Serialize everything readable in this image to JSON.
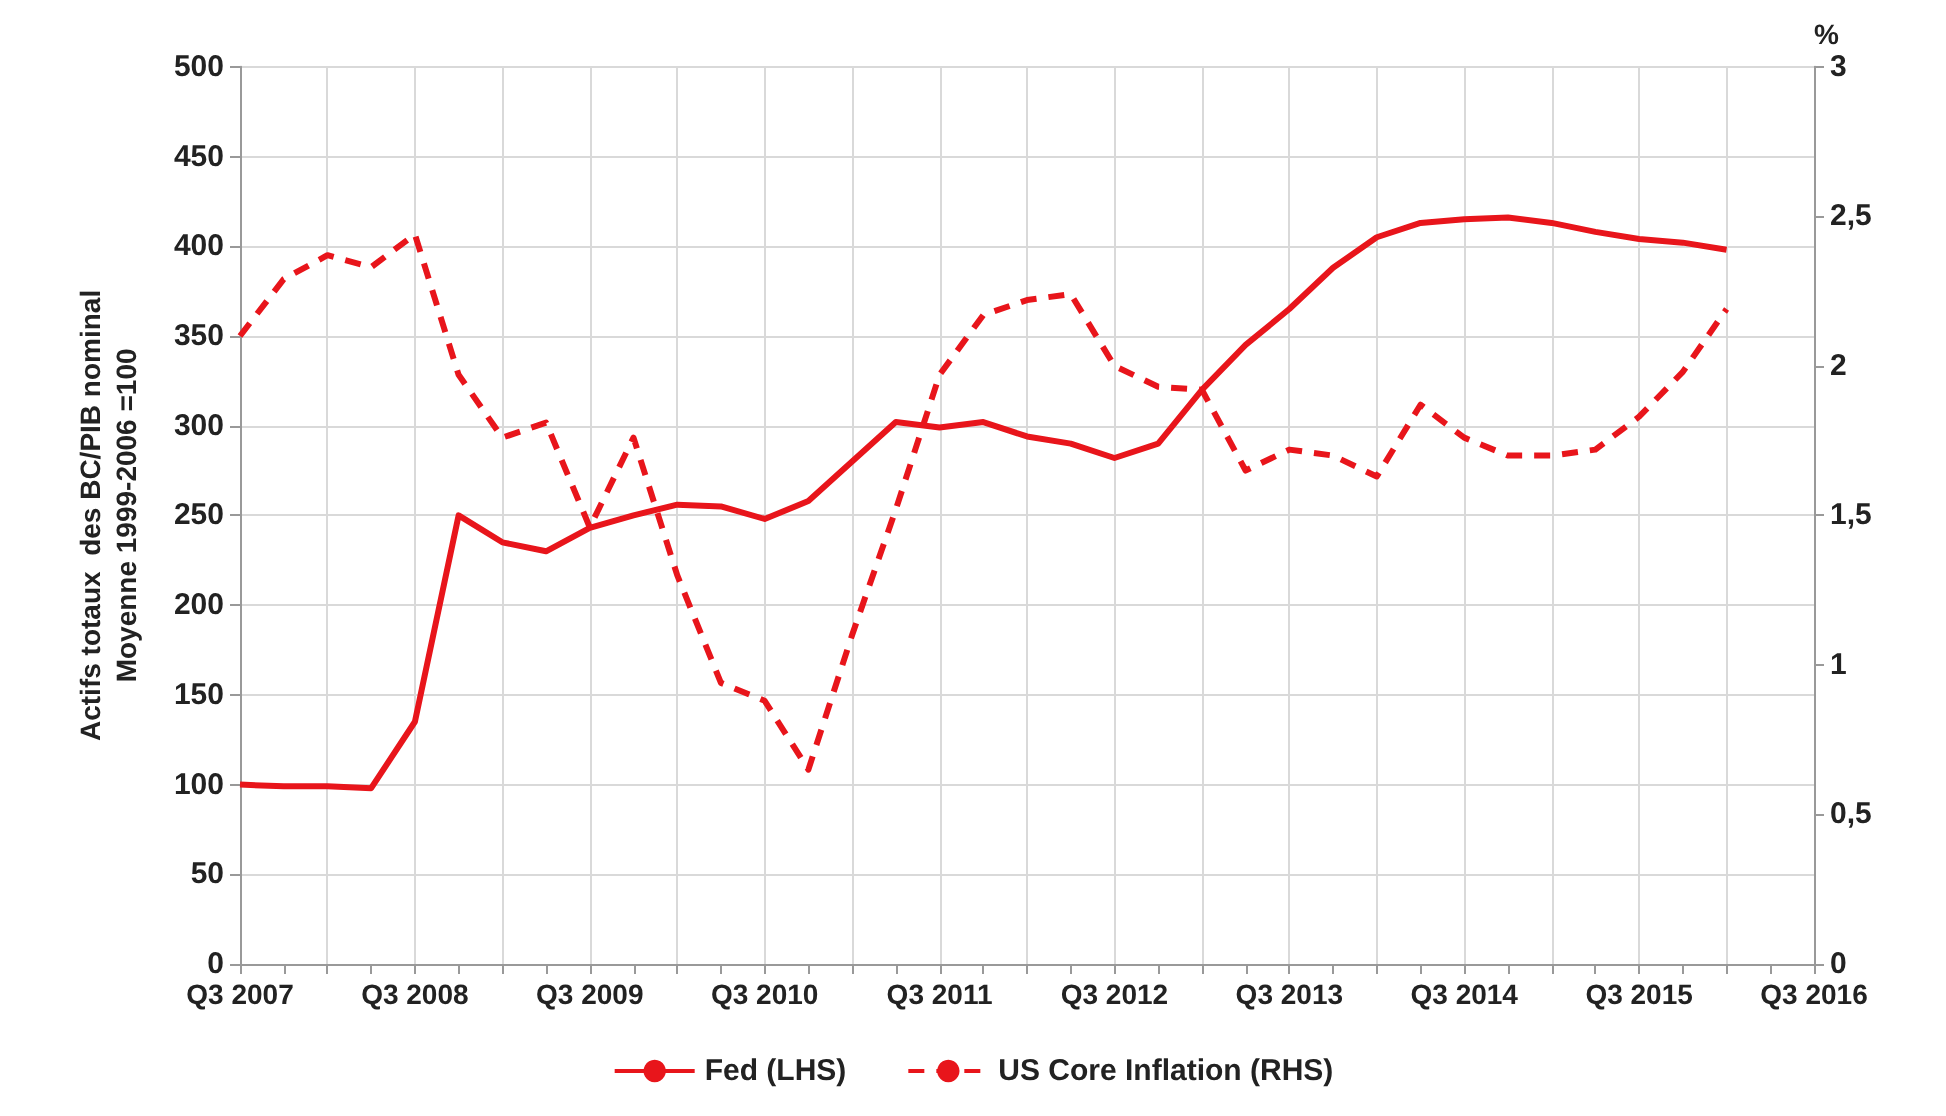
{
  "chart_data": {
    "type": "line",
    "ylabel": "Actifs totaux  des BC/PIB nominal\nMoyenne 1999-2006 =100",
    "y2label": "%",
    "categories": [
      "Q3 2007",
      null,
      null,
      null,
      "Q3 2008",
      null,
      null,
      null,
      "Q3 2009",
      null,
      null,
      null,
      "Q3 2010",
      null,
      null,
      null,
      "Q3 2011",
      null,
      null,
      null,
      "Q3 2012",
      null,
      null,
      null,
      "Q3 2013",
      null,
      null,
      null,
      "Q3 2014",
      null,
      null,
      null,
      "Q3 2015",
      null,
      null,
      null,
      "Q3 2016"
    ],
    "series": [
      {
        "name": "Fed (LHS)",
        "color": "#e8151b",
        "line_style": "solid",
        "values": [
          100,
          99,
          99,
          98,
          135,
          250,
          235,
          230,
          243,
          250,
          256,
          255,
          248,
          258,
          280,
          302,
          299,
          302,
          294,
          290,
          282,
          290,
          320,
          345,
          365,
          388,
          405,
          413,
          415,
          416,
          413,
          408,
          404,
          402,
          398,
          null,
          null
        ]
      },
      {
        "name": "US Core Inflation (RHS)",
        "color": "#e8151b",
        "line_style": "dashed",
        "axis": "y2",
        "values": [
          2.1,
          2.29,
          2.37,
          2.33,
          2.44,
          1.97,
          1.76,
          1.81,
          1.46,
          1.76,
          1.3,
          0.94,
          0.88,
          0.65,
          1.1,
          1.52,
          1.97,
          2.17,
          2.22,
          2.24,
          2.0,
          1.93,
          1.92,
          1.65,
          1.72,
          1.7,
          1.63,
          1.87,
          1.76,
          1.7,
          1.7,
          1.72,
          1.83,
          1.98,
          2.19,
          null,
          null
        ]
      }
    ],
    "ylim": [
      0,
      500
    ],
    "yticks": [
      0,
      50,
      100,
      150,
      200,
      250,
      300,
      350,
      400,
      450,
      500
    ],
    "y2lim": [
      0,
      3
    ],
    "y2ticks": [
      0,
      {
        "value": 0.5,
        "label": "0,5"
      },
      1,
      {
        "value": 1.5,
        "label": "1,5"
      },
      2,
      {
        "value": 2.5,
        "label": "2,5"
      },
      3
    ],
    "grid": true,
    "legend": "bottom",
    "marker": "none"
  }
}
